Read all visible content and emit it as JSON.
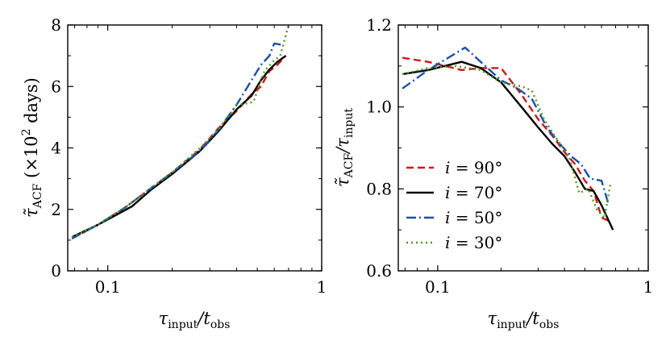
{
  "chart_data": [
    {
      "type": "line",
      "xscale": "log",
      "xlim": [
        0.065,
        1
      ],
      "ylim": [
        0,
        8
      ],
      "xticks": [
        0.1,
        1
      ],
      "xtick_labels": [
        "0.1",
        "1"
      ],
      "yticks": [
        0,
        2,
        4,
        6,
        8
      ],
      "ytick_labels": [
        "0",
        "2",
        "4",
        "6",
        "8"
      ],
      "xlabel": "τinput/tobs",
      "xlabel_parts": {
        "main": "τ",
        "sub1": "input",
        "sep": "/t",
        "sub2": "obs"
      },
      "ylabel": "τ̃ACF (×10² days)",
      "ylabel_parts": {
        "main": "τ̃",
        "sub": "ACF",
        "open": " (×10",
        "exp": "2",
        "close": " days)"
      },
      "series": [
        {
          "name": "i = 90°",
          "color": "#cc1a1a",
          "dash": "9,5",
          "x": [
            0.068,
            0.09,
            0.12,
            0.16,
            0.2,
            0.27,
            0.33,
            0.4,
            0.47,
            0.52,
            0.57,
            0.62,
            0.67
          ],
          "y": [
            1.05,
            1.5,
            2.05,
            2.7,
            3.2,
            3.95,
            4.65,
            5.2,
            5.75,
            6.0,
            6.5,
            6.7,
            6.95
          ]
        },
        {
          "name": "i = 70°",
          "color": "#000000",
          "dash": "",
          "x": [
            0.068,
            0.09,
            0.13,
            0.16,
            0.2,
            0.27,
            0.33,
            0.4,
            0.47,
            0.52,
            0.57,
            0.62,
            0.68
          ],
          "y": [
            1.1,
            1.5,
            2.1,
            2.65,
            3.15,
            3.9,
            4.55,
            5.25,
            5.7,
            6.2,
            6.55,
            6.8,
            7.0
          ]
        },
        {
          "name": "i = 50°",
          "color": "#1a4fa8",
          "dash": "12,4,2,4",
          "x": [
            0.068,
            0.09,
            0.12,
            0.16,
            0.2,
            0.27,
            0.33,
            0.4,
            0.47,
            0.52,
            0.57,
            0.6,
            0.66
          ],
          "y": [
            1.05,
            1.5,
            2.05,
            2.7,
            3.2,
            3.9,
            4.6,
            5.4,
            6.2,
            6.7,
            7.0,
            7.4,
            7.35
          ]
        },
        {
          "name": "i = 30°",
          "color": "#4e9a1a",
          "dash": "2,4",
          "x": [
            0.068,
            0.09,
            0.12,
            0.16,
            0.2,
            0.27,
            0.33,
            0.4,
            0.45,
            0.48,
            0.54,
            0.59,
            0.64,
            0.7
          ],
          "y": [
            1.1,
            1.5,
            2.05,
            2.7,
            3.2,
            4.0,
            4.6,
            5.4,
            5.45,
            5.5,
            6.5,
            6.8,
            7.0,
            8.0
          ]
        }
      ]
    },
    {
      "type": "line",
      "xscale": "log",
      "xlim": [
        0.065,
        1
      ],
      "ylim": [
        0.6,
        1.2
      ],
      "xticks": [
        0.1,
        1
      ],
      "xtick_labels": [
        "0.1",
        "1"
      ],
      "yticks": [
        0.6,
        0.8,
        1.0,
        1.2
      ],
      "ytick_labels": [
        "0.6",
        "0.8",
        "1.0",
        "1.2"
      ],
      "xlabel": "τinput/tobs",
      "xlabel_parts": {
        "main": "τ",
        "sub1": "input",
        "sep": "/t",
        "sub2": "obs"
      },
      "ylabel": "τ̃ACF/τinput",
      "ylabel_parts": {
        "main": "τ̃",
        "sub1": "ACF",
        "sep": "/τ",
        "sub2": "input"
      },
      "legend": {
        "location": "lower-left"
      },
      "series": [
        {
          "name": "i = 90°",
          "color": "#cc1a1a",
          "dash": "9,5",
          "x": [
            0.068,
            0.09,
            0.13,
            0.16,
            0.2,
            0.25,
            0.3,
            0.35,
            0.4,
            0.45,
            0.5,
            0.55,
            0.6,
            0.66
          ],
          "y": [
            1.12,
            1.11,
            1.09,
            1.095,
            1.095,
            1.03,
            0.97,
            0.93,
            0.89,
            0.86,
            0.82,
            0.795,
            0.73,
            0.72
          ]
        },
        {
          "name": "i = 70°",
          "color": "#000000",
          "dash": "",
          "x": [
            0.068,
            0.09,
            0.13,
            0.16,
            0.2,
            0.25,
            0.3,
            0.35,
            0.4,
            0.45,
            0.5,
            0.55,
            0.6,
            0.68
          ],
          "y": [
            1.08,
            1.09,
            1.11,
            1.095,
            1.06,
            1.0,
            0.95,
            0.91,
            0.88,
            0.84,
            0.8,
            0.795,
            0.76,
            0.7
          ]
        },
        {
          "name": "i = 50°",
          "color": "#1a4fa8",
          "dash": "12,4,2,4",
          "x": [
            0.068,
            0.09,
            0.135,
            0.16,
            0.2,
            0.24,
            0.28,
            0.33,
            0.38,
            0.43,
            0.48,
            0.53,
            0.6,
            0.65
          ],
          "y": [
            1.045,
            1.09,
            1.145,
            1.11,
            1.065,
            1.045,
            1.02,
            0.95,
            0.91,
            0.88,
            0.86,
            0.825,
            0.82,
            0.76
          ]
        },
        {
          "name": "i = 30°",
          "color": "#4e9a1a",
          "dash": "2,4",
          "x": [
            0.068,
            0.09,
            0.12,
            0.16,
            0.2,
            0.25,
            0.28,
            0.32,
            0.37,
            0.42,
            0.47,
            0.52,
            0.57,
            0.62,
            0.66
          ],
          "y": [
            1.08,
            1.095,
            1.1,
            1.09,
            1.06,
            1.05,
            1.04,
            0.97,
            0.92,
            0.88,
            0.79,
            0.8,
            0.75,
            0.73,
            0.81
          ]
        }
      ]
    }
  ]
}
